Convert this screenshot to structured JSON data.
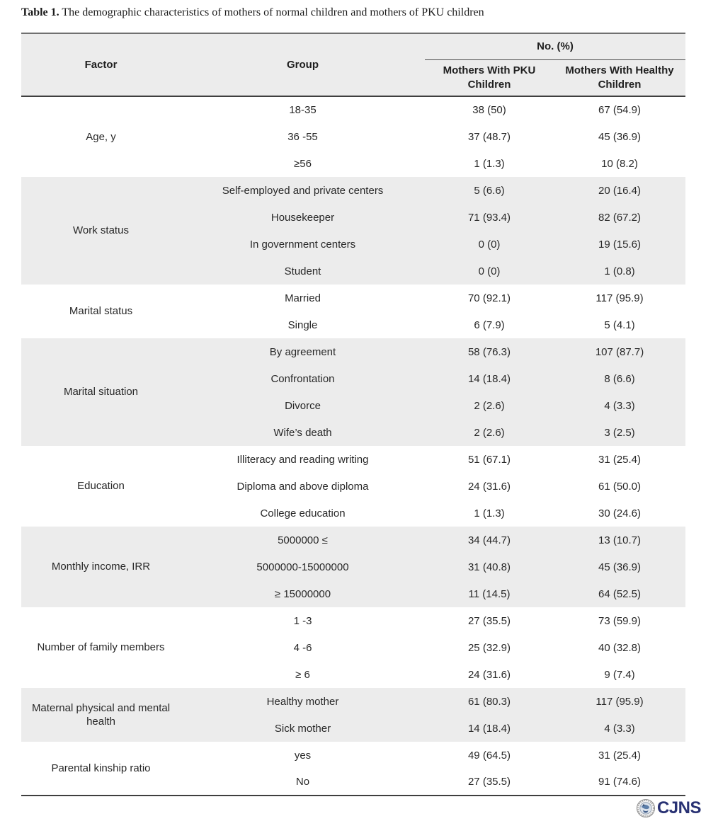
{
  "title": {
    "label": "Table 1.",
    "text": " The demographic characteristics of mothers of normal children and mothers of PKU children"
  },
  "table": {
    "col_headers": {
      "factor": "Factor",
      "group": "Group",
      "span": "No. (%)",
      "col1": "Mothers With PKU Children",
      "col2": "Mothers With Healthy Children"
    },
    "groups": [
      {
        "factor": "Age, y",
        "shaded": false,
        "rows": [
          [
            "18-35",
            "38 (50)",
            "67 (54.9)"
          ],
          [
            "36 -55",
            "37 (48.7)",
            "45 (36.9)"
          ],
          [
            "≥56",
            "1 (1.3)",
            "10 (8.2)"
          ]
        ]
      },
      {
        "factor": "Work status",
        "shaded": true,
        "rows": [
          [
            "Self-employed and private centers",
            "5 (6.6)",
            "20 (16.4)"
          ],
          [
            "Housekeeper",
            "71 (93.4)",
            "82 (67.2)"
          ],
          [
            "In government centers",
            "0 (0)",
            "19 (15.6)"
          ],
          [
            "Student",
            "0 (0)",
            "1 (0.8)"
          ]
        ]
      },
      {
        "factor": "Marital status",
        "shaded": false,
        "rows": [
          [
            "Married",
            "70 (92.1)",
            "117 (95.9)"
          ],
          [
            "Single",
            "6 (7.9)",
            "5 (4.1)"
          ]
        ]
      },
      {
        "factor": "Marital situation",
        "shaded": true,
        "rows": [
          [
            "By agreement",
            "58 (76.3)",
            "107 (87.7)"
          ],
          [
            "Confrontation",
            "14 (18.4)",
            "8 (6.6)"
          ],
          [
            "Divorce",
            "2 (2.6)",
            "4 (3.3)"
          ],
          [
            "Wife’s death",
            "2 (2.6)",
            "3 (2.5)"
          ]
        ]
      },
      {
        "factor": "Education",
        "shaded": false,
        "rows": [
          [
            "Illiteracy and reading writing",
            "51 (67.1)",
            "31 (25.4)"
          ],
          [
            "Diploma and above diploma",
            "24 (31.6)",
            "61 (50.0)"
          ],
          [
            "College education",
            "1 (1.3)",
            "30 (24.6)"
          ]
        ]
      },
      {
        "factor": "Monthly income, IRR",
        "shaded": true,
        "rows": [
          [
            "5000000 ≤",
            "34 (44.7)",
            "13 (10.7)"
          ],
          [
            "5000000-15000000",
            "31 (40.8)",
            "45 (36.9)"
          ],
          [
            "≥ 15000000",
            "11 (14.5)",
            "64 (52.5)"
          ]
        ]
      },
      {
        "factor": "Number of family members",
        "shaded": false,
        "rows": [
          [
            "1 -3",
            "27 (35.5)",
            "73 (59.9)"
          ],
          [
            "4 -6",
            "25 (32.9)",
            "40 (32.8)"
          ],
          [
            "≥ 6",
            "24 (31.6)",
            "9 (7.4)"
          ]
        ]
      },
      {
        "factor": "Maternal physical and mental health",
        "shaded": true,
        "rows": [
          [
            "Healthy mother",
            "61 (80.3)",
            "117 (95.9)"
          ],
          [
            "Sick mother",
            "14 (18.4)",
            "4 (3.3)"
          ]
        ]
      },
      {
        "factor": "Parental kinship ratio",
        "shaded": false,
        "rows": [
          [
            "yes",
            "49 (64.5)",
            "31 (25.4)"
          ],
          [
            "No",
            "27 (35.5)",
            "91 (74.6)"
          ]
        ]
      }
    ]
  },
  "footer": {
    "journal_logo_text": "CJNS"
  },
  "colors": {
    "band_gray": "#ececec",
    "logo_navy": "#283173",
    "border_dark": "#3f3f3f",
    "border_medium": "#707070",
    "text": "#282828"
  }
}
